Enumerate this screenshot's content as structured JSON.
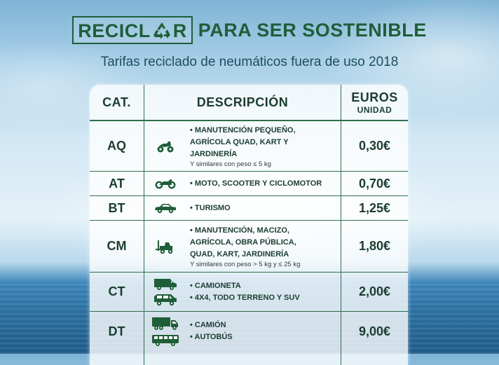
{
  "title": {
    "part1": "RECICL",
    "part2": "R",
    "part3": "PARA SER SOSTENIBLE"
  },
  "subtitle": "Tarifas reciclado de neumáticos fuera de uso 2018",
  "colors": {
    "brand_green": "#1f5e38",
    "text_dark": "#1b3d30",
    "rule_green": "#2f6f4c"
  },
  "table": {
    "headers": {
      "cat": "CAT.",
      "desc": "DESCRIPCIÓN",
      "euros": "EUROS",
      "unidad": "UNIDAD"
    },
    "rows": [
      {
        "cat": "AQ",
        "icons": [
          "quad-icon"
        ],
        "lines": [
          "• MANUTENCIÓN PEQUEÑO,",
          "AGRÍCOLA QUAD, KART Y",
          "JARDINERÍA"
        ],
        "note": "Y similares con peso ≤ 5 kg",
        "price": "0,30€"
      },
      {
        "cat": "AT",
        "icons": [
          "motorcycle-icon"
        ],
        "lines": [
          "• MOTO, SCOOTER Y CICLOMOTOR"
        ],
        "price": "0,70€"
      },
      {
        "cat": "BT",
        "icons": [
          "car-icon"
        ],
        "lines": [
          "• TURISMO"
        ],
        "price": "1,25€"
      },
      {
        "cat": "CM",
        "icons": [
          "forklift-icon"
        ],
        "lines": [
          "• MANUTENCIÓN, MACIZO,",
          "AGRÍCOLA, OBRA PÚBLICA,",
          "QUAD, KART, JARDINERÍA"
        ],
        "note": "Y similares con peso > 5 kg y ≤ 25 kg",
        "price": "1,80€"
      },
      {
        "cat": "CT",
        "icons": [
          "van-icon",
          "suv-icon"
        ],
        "lines": [
          "• CAMIONETA",
          "• 4X4, TODO TERRENO Y SUV"
        ],
        "price": "2,00€"
      },
      {
        "cat": "DT",
        "icons": [
          "truck-icon",
          "bus-icon"
        ],
        "lines": [
          "• CAMIÓN",
          "• AUTOBÚS"
        ],
        "price": "9,00€"
      }
    ]
  }
}
